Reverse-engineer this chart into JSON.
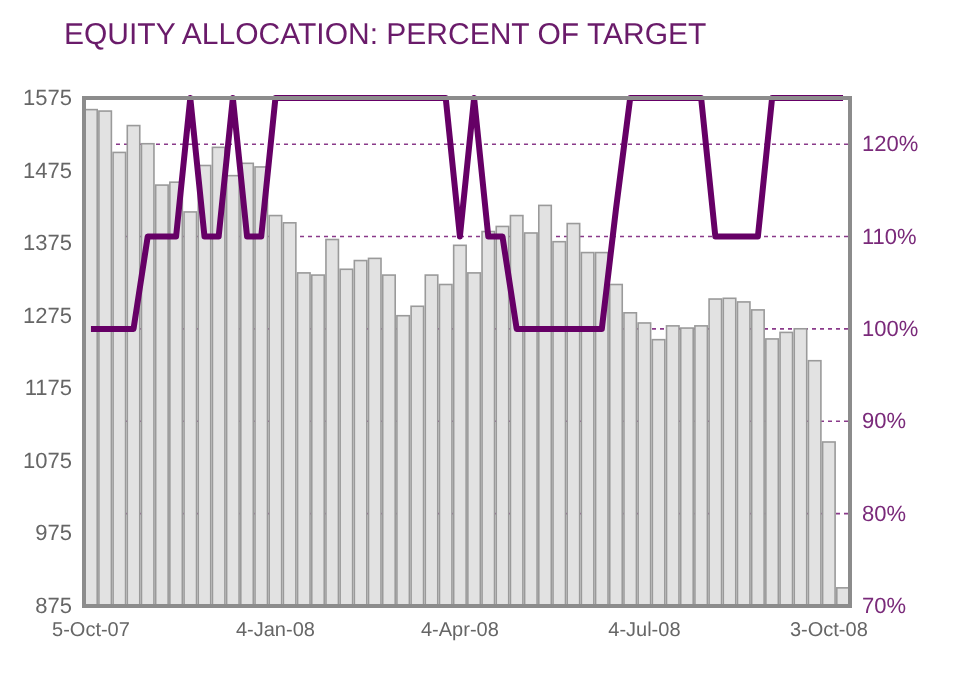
{
  "chart_data": {
    "type": "bar",
    "title": "EQUITY ALLOCATION: PERCENT OF TARGET",
    "categories": [
      "5-Oct-07",
      null,
      null,
      null,
      null,
      null,
      null,
      null,
      null,
      null,
      null,
      null,
      null,
      "4-Jan-08",
      null,
      null,
      null,
      null,
      null,
      null,
      null,
      null,
      null,
      null,
      null,
      null,
      "4-Apr-08",
      null,
      null,
      null,
      null,
      null,
      null,
      null,
      null,
      null,
      null,
      null,
      null,
      "4-Jul-08",
      null,
      null,
      null,
      null,
      null,
      null,
      null,
      null,
      null,
      null,
      null,
      null,
      "3-Oct-08",
      null
    ],
    "series": [
      {
        "color": "#e2e2e2",
        "values": [
          1559,
          1557,
          1500,
          1537,
          1512,
          1455,
          1459,
          1418,
          1482,
          1507,
          1468,
          1485,
          1480,
          1413,
          1403,
          1334,
          1331,
          1380,
          1339,
          1351,
          1354,
          1331,
          1275,
          1288,
          1331,
          1318,
          1372,
          1334,
          1391,
          1398,
          1413,
          1389,
          1427,
          1377,
          1402,
          1362,
          1362,
          1318,
          1279,
          1265,
          1242,
          1261,
          1258,
          1261,
          1298,
          1299,
          1294,
          1283,
          1243,
          1252,
          1257,
          1213,
          1101,
          900
        ]
      },
      {
        "type": "line",
        "axis": "y2",
        "color": "#660066",
        "values": [
          100,
          100,
          100,
          100,
          110,
          110,
          110,
          125,
          110,
          110,
          125,
          110,
          110,
          125,
          125,
          125,
          125,
          125,
          125,
          125,
          125,
          125,
          125,
          125,
          125,
          125,
          110,
          125,
          110,
          110,
          100,
          100,
          100,
          100,
          100,
          100,
          100,
          113,
          125,
          125,
          125,
          125,
          125,
          125,
          110,
          110,
          110,
          110,
          125,
          125,
          125,
          125,
          125,
          125
        ]
      }
    ],
    "ylim": [
      875,
      1575
    ],
    "yticks": [
      875,
      975,
      1075,
      1175,
      1275,
      1375,
      1475,
      1575
    ],
    "y2lim": [
      70,
      125
    ],
    "y2ticks": [
      {
        "value": 70,
        "label": "70%"
      },
      {
        "value": 80,
        "label": "80%"
      },
      {
        "value": 90,
        "label": "90%"
      },
      {
        "value": 100,
        "label": "100%"
      },
      {
        "value": 110,
        "label": "110%"
      },
      {
        "value": 120,
        "label": "120%"
      }
    ],
    "grid": "y2",
    "line_style": "solid",
    "marker": "none"
  }
}
